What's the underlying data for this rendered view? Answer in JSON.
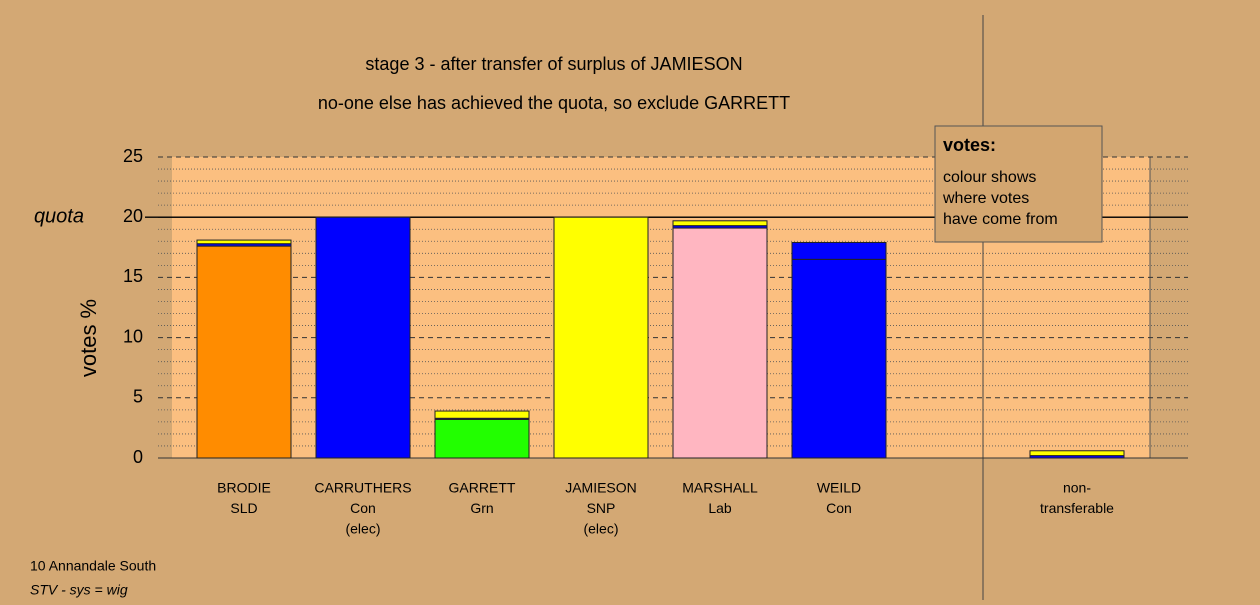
{
  "chart_data": {
    "type": "bar",
    "stacked": true,
    "title": "stage 3 - after transfer of surplus of JAMIESON",
    "subtitle": "no-one else has achieved the quota, so exclude GARRETT",
    "y_label": "votes %",
    "quota_label": "quota",
    "quota": 20,
    "categories": [
      [
        "BRODIE",
        "SLD"
      ],
      [
        "CARRUTHERS",
        "Con",
        "(elec)"
      ],
      [
        "GARRETT",
        "Grn"
      ],
      [
        "JAMIESON",
        "SNP",
        "(elec)"
      ],
      [
        "MARSHALL",
        "Lab"
      ],
      [
        "WEILD",
        "Con"
      ],
      null,
      [
        "non-",
        "transferable"
      ]
    ],
    "bars": [
      [
        {
          "color": "#ff8c00",
          "value": 17.6
        },
        {
          "color": "#0000ff",
          "value": 0.2
        },
        {
          "color": "#ffff00",
          "value": 0.3
        }
      ],
      [
        {
          "color": "#0000ff",
          "value": 20
        }
      ],
      [
        {
          "color": "#22ff00",
          "value": 3.2
        },
        {
          "color": "#0000ff",
          "value": 0.1
        },
        {
          "color": "#ffff00",
          "value": 0.6
        }
      ],
      [
        {
          "color": "#ffff00",
          "value": 20
        }
      ],
      [
        {
          "color": "#ffb6c1",
          "value": 19.1
        },
        {
          "color": "#0000ff",
          "value": 0.2
        },
        {
          "color": "#ffff00",
          "value": 0.4
        }
      ],
      [
        {
          "color": "#0000ff",
          "value": 16.5
        },
        {
          "color": "#0000ff",
          "value": 1.4
        }
      ],
      [],
      [
        {
          "color": "#0000ff",
          "value": 0.2
        },
        {
          "color": "#ffff00",
          "value": 0.4
        }
      ]
    ],
    "ylim": [
      0,
      25
    ],
    "yticks": [
      0,
      5,
      10,
      15,
      20,
      25
    ],
    "minor_yticks": [
      1,
      2,
      3,
      4,
      6,
      7,
      8,
      9,
      11,
      12,
      13,
      14,
      16,
      17,
      18,
      19,
      21,
      22,
      23,
      24
    ],
    "note": {
      "title": "votes:",
      "lines": [
        "colour shows",
        "where votes",
        "have come from"
      ]
    },
    "footer": [
      "10 Annandale South",
      "STV - sys = wig"
    ]
  }
}
